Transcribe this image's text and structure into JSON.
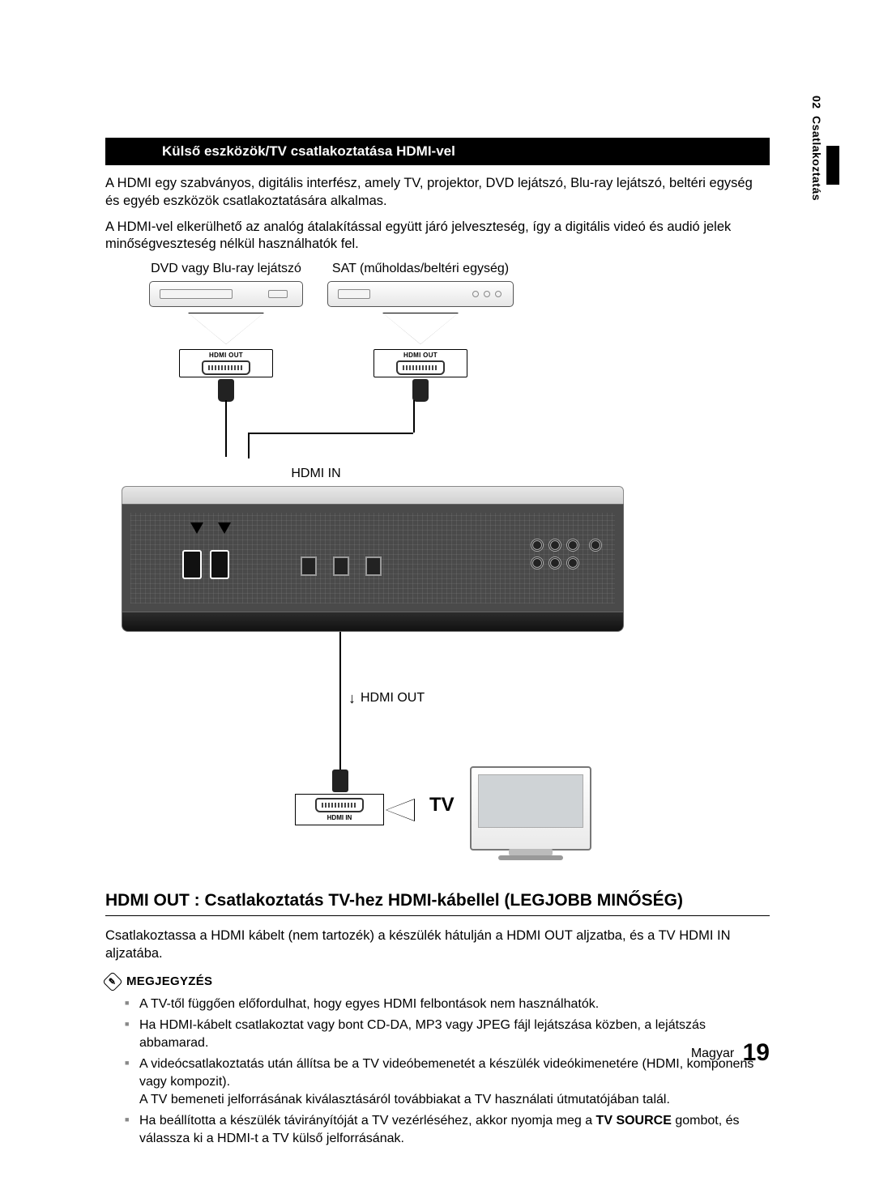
{
  "side_tab": {
    "number": "02",
    "label": "Csatlakoztatás"
  },
  "header_bar": "Külső eszközök/TV csatlakoztatása HDMI-vel",
  "intro": {
    "p1": "A HDMI egy szabványos, digitális interfész, amely TV, projektor, DVD lejátszó, Blu-ray lejátszó, beltéri egység és egyéb eszközök csatlakoztatására alkalmas.",
    "p2": "A HDMI-vel elkerülhető az analóg átalakítással együtt járó jelveszteség, így a digitális videó és audió jelek minőségveszteség nélkül használhatók fel."
  },
  "diagram": {
    "dvd_label": "DVD vagy Blu-ray lejátszó",
    "sat_label": "SAT (műholdas/beltéri egység)",
    "hdmi_out_small": "HDMI OUT",
    "hdmi_in": "HDMI IN",
    "hdmi_out": "HDMI OUT",
    "hdmi_in_small": "HDMI IN",
    "tv_label": "TV",
    "colors": {
      "unit_back": "#4a4a4a",
      "cable": "#000000",
      "connector": "#222222",
      "port_border": "#333333"
    }
  },
  "section_title": "HDMI OUT : Csatlakoztatás TV-hez HDMI-kábellel (LEGJOBB MINŐSÉG)",
  "section_body": "Csatlakoztassa a HDMI kábelt (nem tartozék) a készülék hátulján a HDMI OUT aljzatba, és a TV HDMI IN aljzatába.",
  "note": {
    "title": "MEGJEGYZÉS",
    "items": [
      "A TV-től függően előfordulhat, hogy egyes HDMI felbontások nem használhatók.",
      "Ha HDMI-kábelt csatlakoztat vagy bont CD-DA, MP3 vagy JPEG fájl lejátszása közben, a lejátszás abbamarad.",
      "A videócsatlakoztatás után állítsa be a TV videóbemenetét a készülék videókimenetére (HDMI, komponens vagy kompozit).\nA TV bemeneti jelforrásának kiválasztásáról továbbiakat a TV használati útmutatójában talál.",
      "Ha beállította a készülék távirányítóját a TV vezérléséhez, akkor nyomja meg a TV SOURCE gombot, és válassza ki a HDMI-t a TV külső jelforrásának."
    ],
    "bold_in_4": "TV SOURCE"
  },
  "footer": {
    "lang": "Magyar",
    "page": "19"
  }
}
